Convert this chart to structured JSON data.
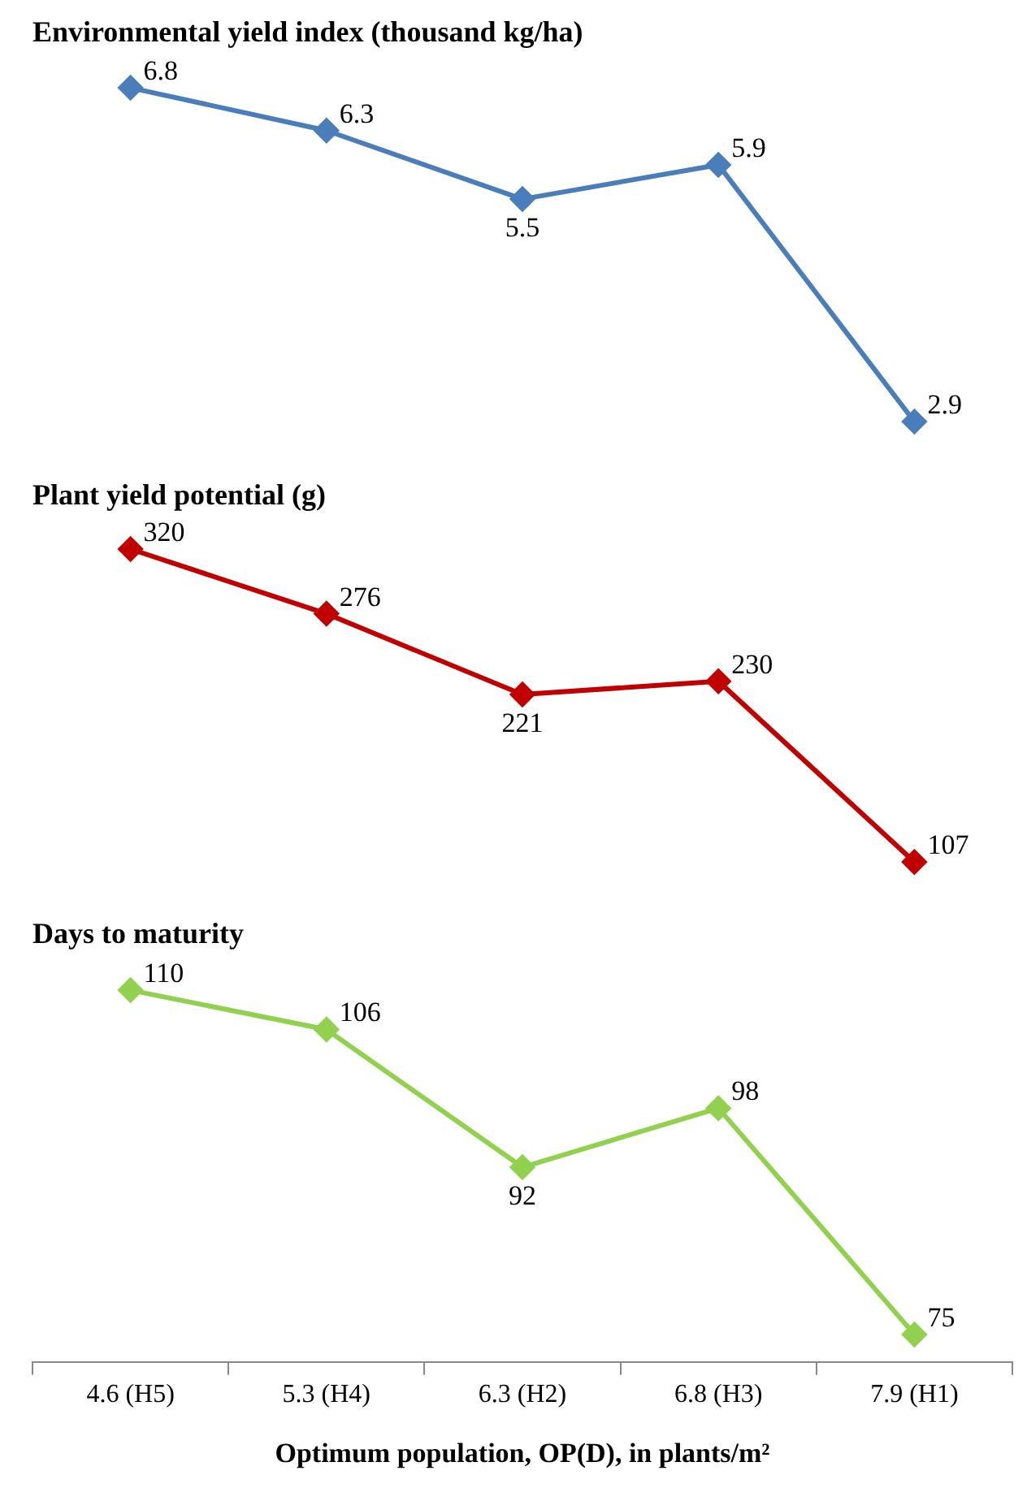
{
  "chart_data": [
    {
      "type": "line",
      "title": "Environmental yield index (thousand kg/ha)",
      "categories": [
        null,
        null,
        null,
        null,
        null
      ],
      "series": [
        {
          "color": "#4a7ebb",
          "values": [
            6.8,
            6.3,
            5.5,
            5.9,
            2.9
          ]
        }
      ],
      "data_labels": true,
      "marker": "diamond",
      "grid": false,
      "legend": false,
      "tick_labels": false
    },
    {
      "type": "line",
      "title": "Plant yield potential (g)",
      "categories": [
        null,
        null,
        null,
        null,
        null
      ],
      "series": [
        {
          "color": "#c00000",
          "values": [
            320,
            276,
            221,
            230,
            107
          ]
        }
      ],
      "data_labels": true,
      "marker": "diamond",
      "grid": false,
      "legend": false,
      "tick_labels": false
    },
    {
      "type": "line",
      "title": "Days to maturity",
      "xlabel": "Optimum population, OP(D), in plants/m²",
      "categories": [
        "4.6 (H5)",
        "5.3 (H4)",
        "6.3 (H2)",
        "6.8 (H3)",
        "7.9 (H1)"
      ],
      "series": [
        {
          "color": "#92d050",
          "values": [
            110,
            106,
            92,
            98,
            75
          ]
        }
      ],
      "data_labels": true,
      "marker": "diamond",
      "grid": false,
      "legend": false,
      "tick_labels": "x"
    }
  ]
}
